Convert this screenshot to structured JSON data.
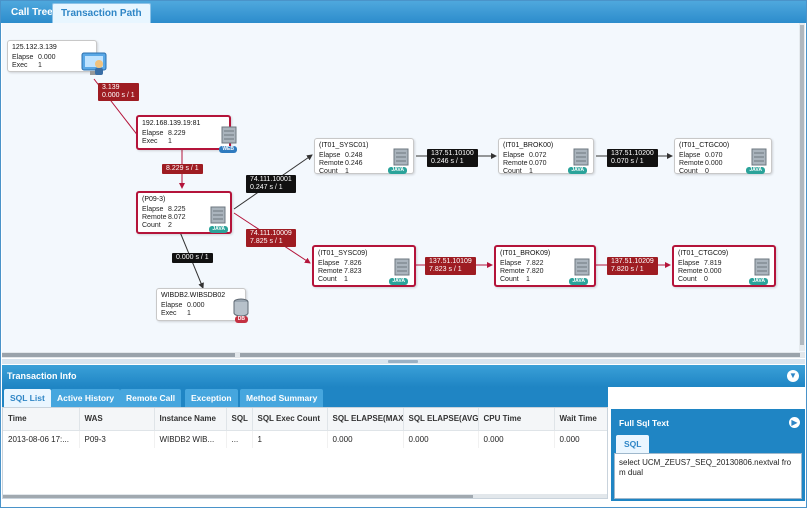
{
  "tabs": [
    {
      "label": "Call Tree",
      "active": false
    },
    {
      "label": "Transaction Path",
      "active": true
    }
  ],
  "nodes": [
    {
      "id": "client",
      "title": "125.132.3.139",
      "rows": [
        [
          "Elapse",
          "0.000"
        ],
        [
          "Exec",
          "1"
        ]
      ],
      "icon": "client-computer-icon",
      "badge": "",
      "hot": false
    },
    {
      "id": "web",
      "title": "192.168.139.19:81",
      "rows": [
        [
          "Elapse",
          "8.229"
        ],
        [
          "Exec",
          "1"
        ]
      ],
      "icon": "server-icon",
      "badge": "WEB",
      "hot": true
    },
    {
      "id": "p09",
      "title": "(P09-3)",
      "rows": [
        [
          "Elapse",
          "8.225"
        ],
        [
          "Remote",
          "8.072"
        ],
        [
          "Count",
          "2"
        ]
      ],
      "icon": "server-icon",
      "badge": "JAVA",
      "hot": true
    },
    {
      "id": "db",
      "title": "WIBDB2.WIBSDB02",
      "rows": [
        [
          "Elapse",
          "0.000"
        ],
        [
          "Exec",
          "1"
        ]
      ],
      "icon": "database-icon",
      "badge": "DB",
      "hot": false
    },
    {
      "id": "sysc01",
      "title": "(IT01_SYSC01)",
      "rows": [
        [
          "Elapse",
          "0.248"
        ],
        [
          "Remote",
          "0.246"
        ],
        [
          "Count",
          "1"
        ]
      ],
      "icon": "server-icon",
      "badge": "JAVA",
      "hot": false
    },
    {
      "id": "brok00",
      "title": "(IT01_BROK00)",
      "rows": [
        [
          "Elapse",
          "0.072"
        ],
        [
          "Remote",
          "0.070"
        ],
        [
          "Count",
          "1"
        ]
      ],
      "icon": "server-icon",
      "badge": "JAVA",
      "hot": false
    },
    {
      "id": "ctgc00",
      "title": "(IT01_CTGC00)",
      "rows": [
        [
          "Elapse",
          "0.070"
        ],
        [
          "Remote",
          "0.000"
        ],
        [
          "Count",
          "0"
        ]
      ],
      "icon": "server-icon",
      "badge": "JAVA",
      "hot": false
    },
    {
      "id": "sysc09",
      "title": "(IT01_SYSC09)",
      "rows": [
        [
          "Elapse",
          "7.826"
        ],
        [
          "Remote",
          "7.823"
        ],
        [
          "Count",
          "1"
        ]
      ],
      "icon": "server-icon",
      "badge": "JAVA",
      "hot": true
    },
    {
      "id": "brok09",
      "title": "(IT01_BROK09)",
      "rows": [
        [
          "Elapse",
          "7.822"
        ],
        [
          "Remote",
          "7.820"
        ],
        [
          "Count",
          "1"
        ]
      ],
      "icon": "server-icon",
      "badge": "JAVA",
      "hot": true
    },
    {
      "id": "ctgc09",
      "title": "(IT01_CTGC09)",
      "rows": [
        [
          "Elapse",
          "7.819"
        ],
        [
          "Remote",
          "0.000"
        ],
        [
          "Count",
          "0"
        ]
      ],
      "icon": "server-icon",
      "badge": "JAVA",
      "hot": true
    }
  ],
  "edges": [
    {
      "id": "e1",
      "line1": "3.139",
      "line2": "0.000 s / 1",
      "color": "red"
    },
    {
      "id": "e2",
      "line1": "8.229 s / 1",
      "line2": "",
      "color": "red"
    },
    {
      "id": "e3",
      "line1": "0.000 s / 1",
      "line2": "",
      "color": "black"
    },
    {
      "id": "e4",
      "line1": "74.111.10001",
      "line2": "0.247 s / 1",
      "color": "black"
    },
    {
      "id": "e5",
      "line1": "74.111.10009",
      "line2": "7.825 s / 1",
      "color": "red"
    },
    {
      "id": "e6",
      "line1": "137.51.10100",
      "line2": "0.246 s / 1",
      "color": "black"
    },
    {
      "id": "e7",
      "line1": "137.51.10200",
      "line2": "0.070 s / 1",
      "color": "black"
    },
    {
      "id": "e8",
      "line1": "137.51.10109",
      "line2": "7.823 s / 1",
      "color": "red"
    },
    {
      "id": "e9",
      "line1": "137.51.10209",
      "line2": "7.820 s / 1",
      "color": "red"
    }
  ],
  "info": {
    "title": "Transaction Info",
    "tabs": [
      "SQL List",
      "Active History",
      "Remote Call",
      "Exception",
      "Method Summary"
    ],
    "active_tab": "SQL List",
    "columns": [
      "Time",
      "WAS",
      "Instance Name",
      "SQL",
      "SQL Exec Count",
      "SQL ELAPSE(MAX)",
      "SQL ELAPSE(AVG)",
      "CPU Time",
      "Wait Time"
    ],
    "rows": [
      [
        "2013-08-06 17:...",
        "P09-3",
        "WIBDB2 WIB...",
        "...",
        "1",
        "0.000",
        "0.000",
        "0.000",
        "0.000"
      ]
    ]
  },
  "sql_panel": {
    "title": "Full Sql Text",
    "tab": "SQL",
    "text": "select UCM_ZEUS7_SEQ_20130806.nextval from dual"
  },
  "colors": {
    "accent": "#2c8ccc",
    "hot": "#b4143a",
    "edge_red": "#9e1c22",
    "edge_black": "#111111"
  }
}
